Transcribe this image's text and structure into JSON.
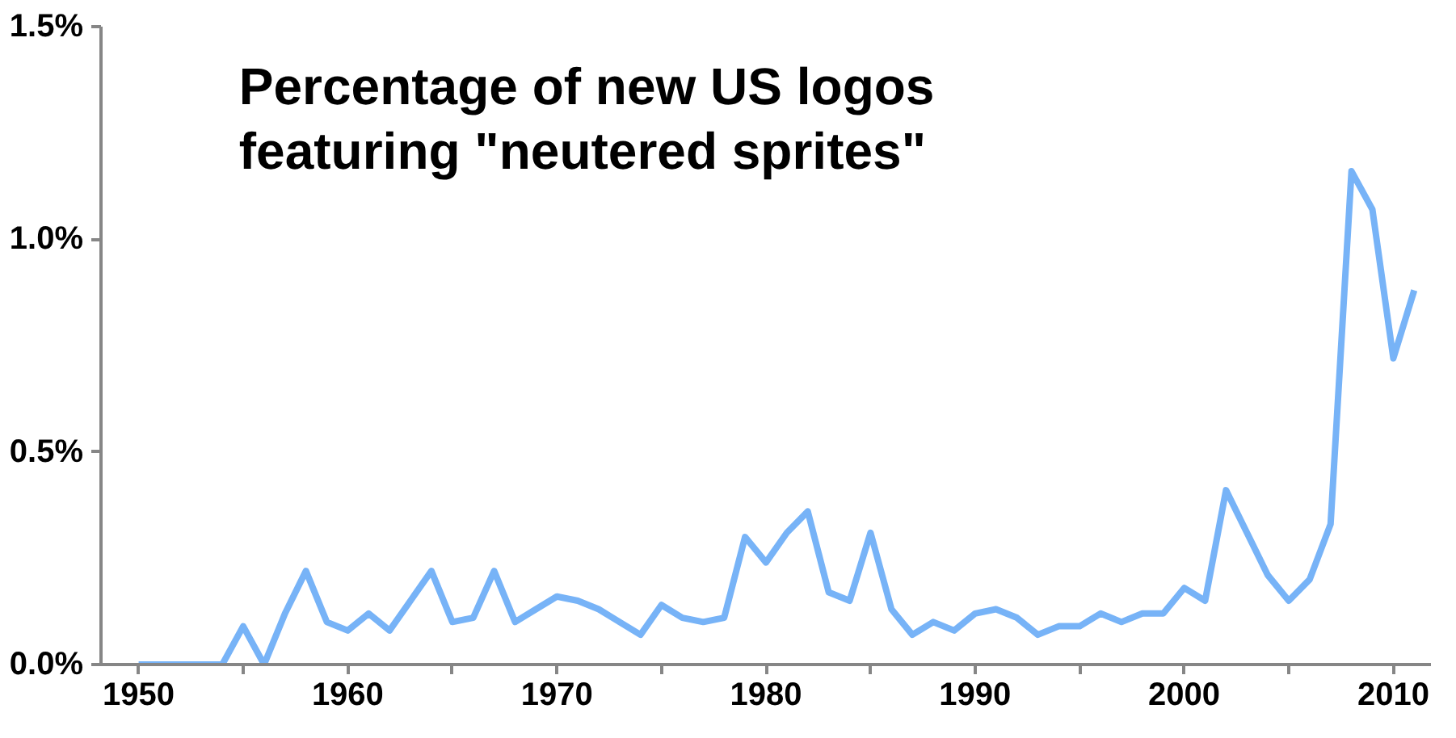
{
  "chart_data": {
    "type": "line",
    "title": "Percentage of new US logos\nfeaturing \"neutered sprites\"",
    "x": [
      1950,
      1951,
      1952,
      1953,
      1954,
      1955,
      1956,
      1957,
      1958,
      1959,
      1960,
      1961,
      1962,
      1963,
      1964,
      1965,
      1966,
      1967,
      1968,
      1969,
      1970,
      1971,
      1972,
      1973,
      1974,
      1975,
      1976,
      1977,
      1978,
      1979,
      1980,
      1981,
      1982,
      1983,
      1984,
      1985,
      1986,
      1987,
      1988,
      1989,
      1990,
      1991,
      1992,
      1993,
      1994,
      1995,
      1996,
      1997,
      1998,
      1999,
      2000,
      2001,
      2002,
      2003,
      2004,
      2005,
      2006,
      2007,
      2008,
      2009,
      2010,
      2011
    ],
    "series": [
      {
        "color": "#77b3f7",
        "values": [
          0,
          0,
          0,
          0,
          0,
          0.09,
          0,
          0.12,
          0.22,
          0.1,
          0.08,
          0.12,
          0.08,
          0.15,
          0.22,
          0.1,
          0.11,
          0.22,
          0.1,
          0.13,
          0.16,
          0.15,
          0.13,
          0.1,
          0.07,
          0.14,
          0.11,
          0.1,
          0.11,
          0.3,
          0.24,
          0.31,
          0.36,
          0.17,
          0.15,
          0.31,
          0.13,
          0.07,
          0.1,
          0.08,
          0.12,
          0.13,
          0.11,
          0.07,
          0.09,
          0.09,
          0.12,
          0.1,
          0.12,
          0.12,
          0.18,
          0.15,
          0.41,
          0.31,
          0.21,
          0.15,
          0.2,
          0.33,
          1.16,
          1.07,
          0.72,
          0.88
        ]
      }
    ],
    "xlim": [
      1948.2,
      2011.8
    ],
    "ylim": [
      0,
      1.5
    ],
    "xticks": [
      1950,
      {
        "value": 1955,
        "label": null
      },
      1960,
      {
        "value": 1965,
        "label": null
      },
      1970,
      {
        "value": 1975,
        "label": null
      },
      1980,
      {
        "value": 1985,
        "label": null
      },
      1990,
      {
        "value": 1995,
        "label": null
      },
      2000,
      {
        "value": 2005,
        "label": null
      },
      2010
    ],
    "yticks": [
      {
        "value": 0,
        "label": "0.0%"
      },
      {
        "value": 0.5,
        "label": "0.5%"
      },
      {
        "value": 1.0,
        "label": "1.0%"
      },
      {
        "value": 1.5,
        "label": "1.5%"
      }
    ],
    "grid": false,
    "marker": "none",
    "line_style": "solid"
  }
}
